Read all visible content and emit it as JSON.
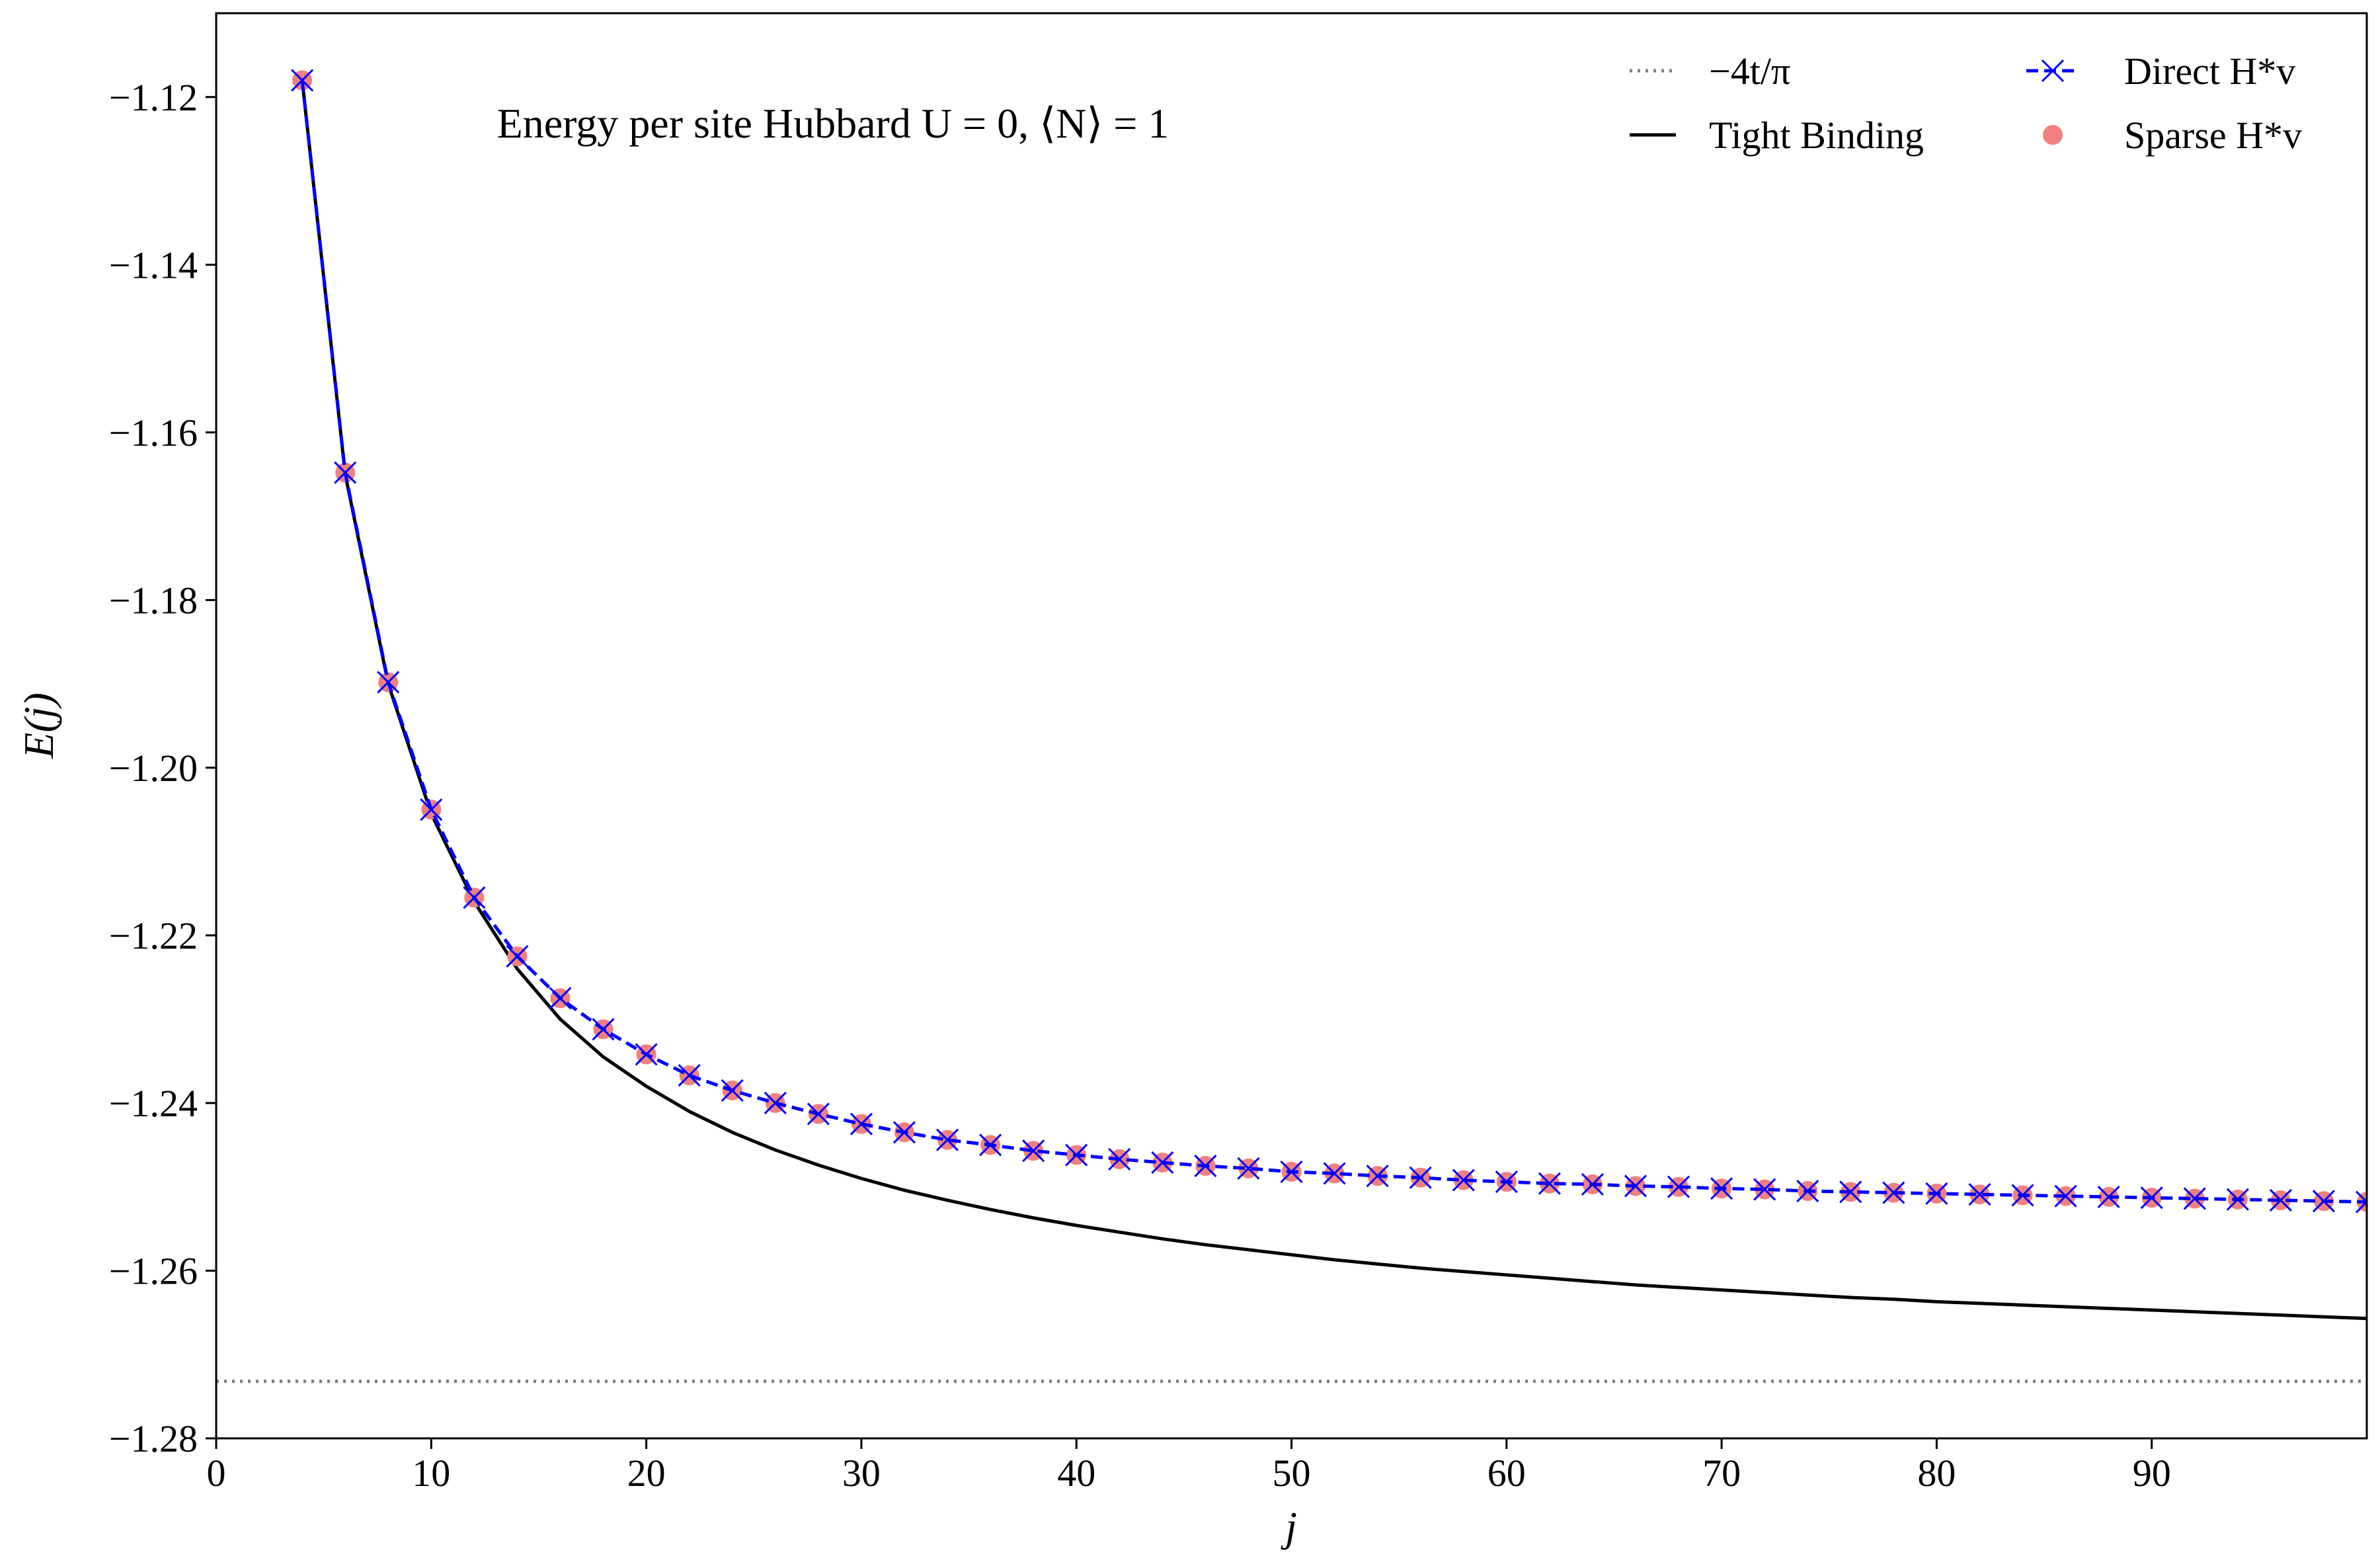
{
  "chart_data": {
    "type": "line",
    "title": "Energy per site Hubbard U = 0, ⟨N⟩ = 1",
    "xlabel": "j",
    "ylabel": "E(j)",
    "xlim": [
      0,
      100
    ],
    "ylim": [
      -1.28,
      -1.11
    ],
    "xticks": [
      0,
      10,
      20,
      30,
      40,
      50,
      60,
      70,
      80,
      90
    ],
    "yticks": [
      -1.12,
      -1.14,
      -1.16,
      -1.18,
      -1.2,
      -1.22,
      -1.24,
      -1.26,
      -1.28
    ],
    "grid": false,
    "legend_placement": "top-right",
    "x": [
      4,
      6,
      8,
      10,
      12,
      14,
      16,
      18,
      20,
      22,
      24,
      26,
      28,
      30,
      32,
      34,
      36,
      38,
      40,
      42,
      44,
      46,
      48,
      50,
      52,
      54,
      56,
      58,
      60,
      62,
      64,
      66,
      68,
      70,
      72,
      74,
      76,
      78,
      80,
      82,
      84,
      86,
      88,
      90,
      92,
      94,
      96,
      98,
      100
    ],
    "series": [
      {
        "name": "−4t/π",
        "style": "dotted",
        "color": "#808080",
        "constant": -1.2732
      },
      {
        "name": "Tight Binding",
        "style": "solid",
        "color": "#000000",
        "values": [
          -1.118,
          -1.165,
          -1.19,
          -1.2055,
          -1.216,
          -1.224,
          -1.23,
          -1.2345,
          -1.238,
          -1.241,
          -1.2435,
          -1.2456,
          -1.2474,
          -1.249,
          -1.2504,
          -1.2516,
          -1.2527,
          -1.2537,
          -1.2546,
          -1.2554,
          -1.2562,
          -1.2569,
          -1.2575,
          -1.2581,
          -1.2587,
          -1.2592,
          -1.2597,
          -1.2601,
          -1.2605,
          -1.2609,
          -1.2613,
          -1.2617,
          -1.262,
          -1.2623,
          -1.2626,
          -1.2629,
          -1.2632,
          -1.2634,
          -1.2637,
          -1.2639,
          -1.2641,
          -1.2643,
          -1.2645,
          -1.2647,
          -1.2649,
          -1.2651,
          -1.2653,
          -1.2655,
          -1.2657
        ]
      },
      {
        "name": "Direct H*v",
        "style": "dashed",
        "marker": "x",
        "color": "#0000ff",
        "values": [
          -1.118,
          -1.1648,
          -1.1898,
          -1.205,
          -1.2155,
          -1.2225,
          -1.2275,
          -1.2312,
          -1.2342,
          -1.2367,
          -1.2385,
          -1.24,
          -1.2413,
          -1.2425,
          -1.2435,
          -1.2444,
          -1.245,
          -1.2457,
          -1.2462,
          -1.2467,
          -1.2471,
          -1.2475,
          -1.2478,
          -1.2482,
          -1.2484,
          -1.2487,
          -1.2489,
          -1.2492,
          -1.2494,
          -1.2496,
          -1.2497,
          -1.2499,
          -1.25,
          -1.2502,
          -1.2503,
          -1.2505,
          -1.2506,
          -1.2507,
          -1.2508,
          -1.2509,
          -1.251,
          -1.2511,
          -1.2512,
          -1.2513,
          -1.2514,
          -1.2515,
          -1.2516,
          -1.2517,
          -1.2518
        ]
      },
      {
        "name": "Sparse H*v",
        "style": "markers",
        "marker": "circle",
        "color": "#f08080",
        "values": [
          -1.118,
          -1.1648,
          -1.1898,
          -1.205,
          -1.2155,
          -1.2225,
          -1.2275,
          -1.2312,
          -1.2342,
          -1.2367,
          -1.2385,
          -1.24,
          -1.2413,
          -1.2425,
          -1.2435,
          -1.2444,
          -1.245,
          -1.2457,
          -1.2462,
          -1.2467,
          -1.2471,
          -1.2475,
          -1.2478,
          -1.2482,
          -1.2484,
          -1.2487,
          -1.2489,
          -1.2492,
          -1.2494,
          -1.2496,
          -1.2497,
          -1.2499,
          -1.25,
          -1.2502,
          -1.2503,
          -1.2505,
          -1.2506,
          -1.2507,
          -1.2508,
          -1.2509,
          -1.251,
          -1.2511,
          -1.2512,
          -1.2513,
          -1.2514,
          -1.2515,
          -1.2516,
          -1.2517,
          -1.2518
        ]
      }
    ]
  }
}
